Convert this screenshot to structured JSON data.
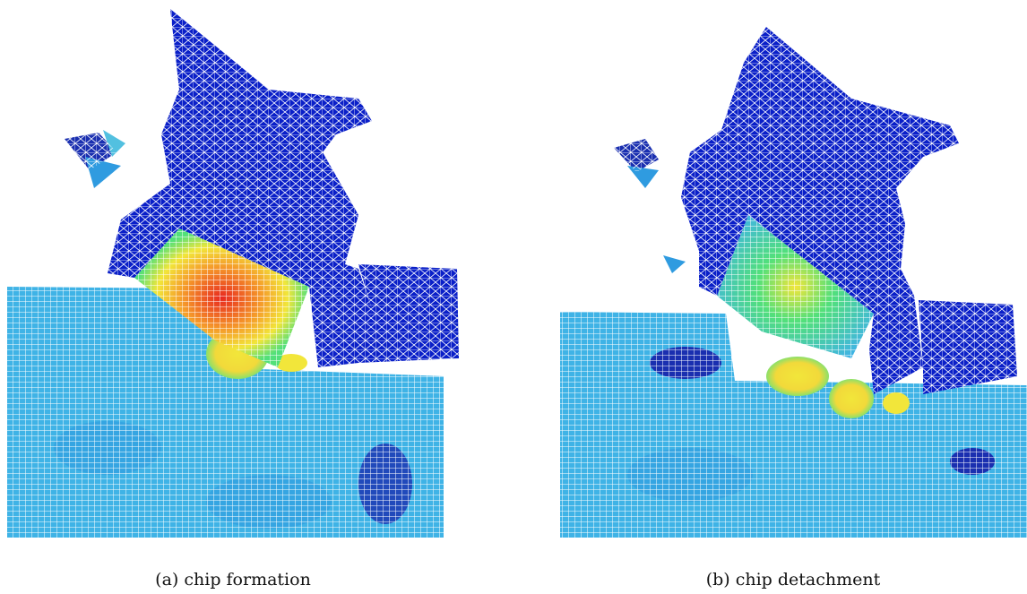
{
  "figure": {
    "panels": [
      {
        "id": "a",
        "caption": "(a) chip formation"
      },
      {
        "id": "b",
        "caption": "(b) chip detachment"
      }
    ],
    "palette": {
      "background": "#ffffff",
      "mesh_line": "#ffffff",
      "tool_blue": "#0a1fc8",
      "deep_blue": "#1a2fb0",
      "workpiece_cyan": "#3fb3e6",
      "mid_blue": "#2f7fe0",
      "green": "#52e07a",
      "yellow": "#f2e63a",
      "orange": "#f59a2a",
      "red": "#e8281f"
    }
  }
}
